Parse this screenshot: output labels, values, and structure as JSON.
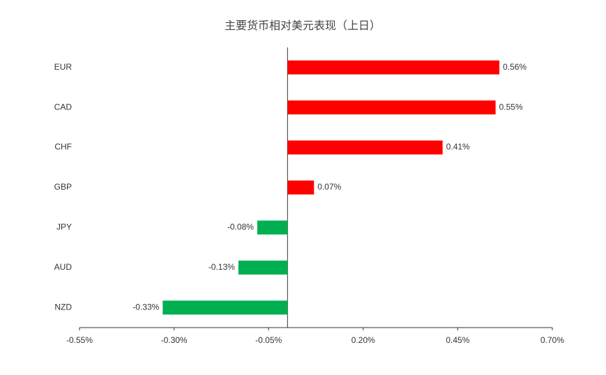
{
  "chart_data": {
    "type": "hbar",
    "title": "主要货币相对美元表现（上日）",
    "categories": [
      "EUR",
      "CAD",
      "CHF",
      "GBP",
      "JPY",
      "AUD",
      "NZD"
    ],
    "values": [
      0.56,
      0.55,
      0.41,
      0.07,
      -0.08,
      -0.13,
      -0.33
    ],
    "value_labels": [
      "0.56%",
      "0.55%",
      "0.41%",
      "0.07%",
      "-0.08%",
      "-0.13%",
      "-0.33%"
    ],
    "colors": [
      "#ff0000",
      "#ff0000",
      "#ff0000",
      "#ff0000",
      "#00b050",
      "#00b050",
      "#00b050"
    ],
    "xlim": [
      -0.55,
      0.7
    ],
    "xticks": [
      {
        "value": -0.55,
        "label": "-0.55%"
      },
      {
        "value": -0.3,
        "label": "-0.30%"
      },
      {
        "value": -0.05,
        "label": "-0.05%"
      },
      {
        "value": 0.2,
        "label": "0.20%"
      },
      {
        "value": 0.45,
        "label": "0.45%"
      },
      {
        "value": 0.7,
        "label": "0.70%"
      }
    ],
    "grid": false
  }
}
